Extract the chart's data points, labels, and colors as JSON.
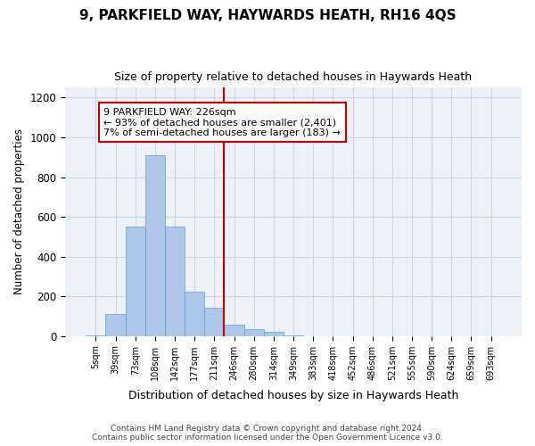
{
  "title1": "9, PARKFIELD WAY, HAYWARDS HEATH, RH16 4QS",
  "title2": "Size of property relative to detached houses in Haywards Heath",
  "xlabel": "Distribution of detached houses by size in Haywards Heath",
  "ylabel": "Number of detached properties",
  "footnote": "Contains HM Land Registry data © Crown copyright and database right 2024.\nContains public sector information licensed under the Open Government Licence v3.0.",
  "bin_labels": [
    "5sqm",
    "39sqm",
    "73sqm",
    "108sqm",
    "142sqm",
    "177sqm",
    "211sqm",
    "246sqm",
    "280sqm",
    "314sqm",
    "349sqm",
    "383sqm",
    "418sqm",
    "452sqm",
    "486sqm",
    "521sqm",
    "555sqm",
    "590sqm",
    "624sqm",
    "659sqm",
    "693sqm"
  ],
  "bar_values": [
    5,
    110,
    550,
    910,
    550,
    225,
    140,
    55,
    35,
    20,
    5,
    0,
    0,
    0,
    0,
    0,
    0,
    0,
    0,
    0,
    0
  ],
  "bar_color": "#aec6e8",
  "bar_edge_color": "#5a9fd4",
  "vline_x_idx": 6.5,
  "vline_color": "#cc0000",
  "annotation_text": "9 PARKFIELD WAY: 226sqm\n← 93% of detached houses are smaller (2,401)\n7% of semi-detached houses are larger (183) →",
  "ylim": [
    0,
    1250
  ],
  "yticks": [
    0,
    200,
    400,
    600,
    800,
    1000,
    1200
  ],
  "grid_color": "#c8d4e8",
  "bg_color": "#eef2f8"
}
